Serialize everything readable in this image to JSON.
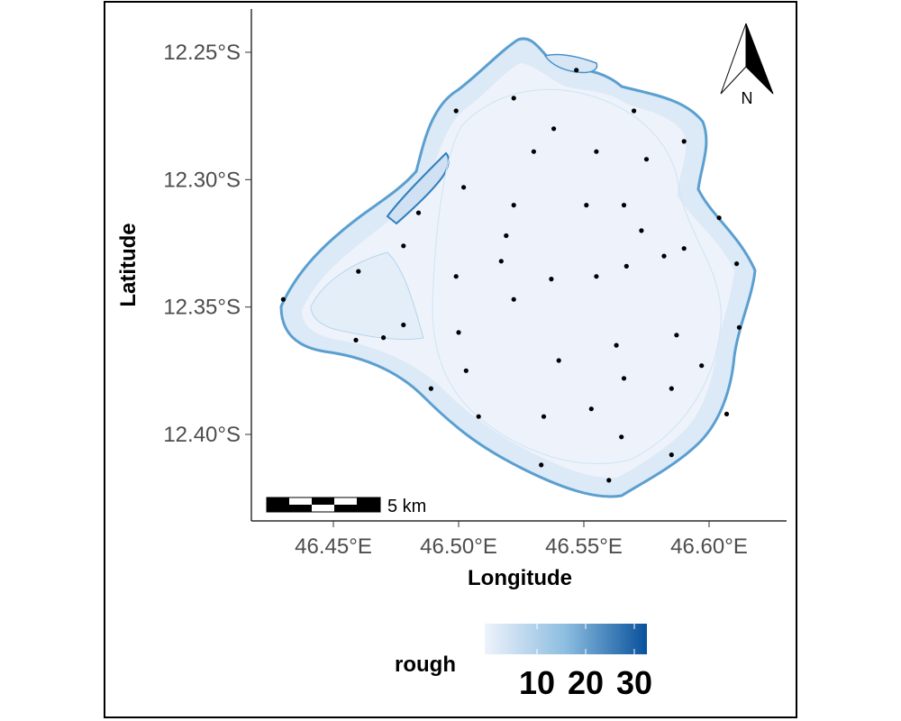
{
  "map": {
    "x_axis_label": "Longitude",
    "y_axis_label": "Latitude",
    "x_ticks": [
      "46.45°E",
      "46.50°E",
      "46.55°E",
      "46.60°E"
    ],
    "y_ticks": [
      "12.25°S",
      "12.30°S",
      "12.35°S",
      "12.40°S"
    ],
    "north_arrow_label": "N",
    "scale_bar_label": "5 km",
    "legend_title": "rough",
    "legend_ticks": [
      "10",
      "20",
      "30"
    ],
    "colors": {
      "low": "#eef3fb",
      "mid": "#8cbde0",
      "high": "#08519c",
      "reef_edge": "#4a90c8",
      "points": "#000000"
    }
  },
  "chart_data": {
    "type": "scatter",
    "x_axis": {
      "label": "Longitude",
      "range": [
        46.42,
        46.635
      ],
      "ticks": [
        46.45,
        46.5,
        46.55,
        46.6
      ]
    },
    "y_axis": {
      "label": "Latitude",
      "range": [
        -12.435,
        -12.235
      ],
      "ticks": [
        -12.25,
        -12.3,
        -12.35,
        -12.4
      ]
    },
    "fill_variable": "rough",
    "fill_scale": {
      "ticks": [
        10,
        20,
        30
      ]
    },
    "points": [
      [
        46.547,
        -12.257
      ],
      [
        46.522,
        -12.268
      ],
      [
        46.499,
        -12.273
      ],
      [
        46.57,
        -12.273
      ],
      [
        46.538,
        -12.28
      ],
      [
        46.53,
        -12.289
      ],
      [
        46.555,
        -12.289
      ],
      [
        46.575,
        -12.292
      ],
      [
        46.59,
        -12.285
      ],
      [
        46.502,
        -12.303
      ],
      [
        46.522,
        -12.31
      ],
      [
        46.551,
        -12.31
      ],
      [
        46.566,
        -12.31
      ],
      [
        46.484,
        -12.313
      ],
      [
        46.604,
        -12.315
      ],
      [
        46.519,
        -12.322
      ],
      [
        46.573,
        -12.32
      ],
      [
        46.478,
        -12.326
      ],
      [
        46.59,
        -12.327
      ],
      [
        46.582,
        -12.33
      ],
      [
        46.517,
        -12.332
      ],
      [
        46.567,
        -12.334
      ],
      [
        46.611,
        -12.333
      ],
      [
        46.46,
        -12.336
      ],
      [
        46.499,
        -12.338
      ],
      [
        46.555,
        -12.338
      ],
      [
        46.537,
        -12.339
      ],
      [
        46.522,
        -12.347
      ],
      [
        46.43,
        -12.347
      ],
      [
        46.478,
        -12.357
      ],
      [
        46.612,
        -12.358
      ],
      [
        46.5,
        -12.36
      ],
      [
        46.587,
        -12.361
      ],
      [
        46.47,
        -12.362
      ],
      [
        46.459,
        -12.363
      ],
      [
        46.563,
        -12.365
      ],
      [
        46.54,
        -12.371
      ],
      [
        46.597,
        -12.373
      ],
      [
        46.503,
        -12.375
      ],
      [
        46.566,
        -12.378
      ],
      [
        46.489,
        -12.382
      ],
      [
        46.585,
        -12.382
      ],
      [
        46.553,
        -12.39
      ],
      [
        46.607,
        -12.392
      ],
      [
        46.534,
        -12.393
      ],
      [
        46.508,
        -12.393
      ],
      [
        46.565,
        -12.401
      ],
      [
        46.585,
        -12.408
      ],
      [
        46.533,
        -12.412
      ],
      [
        46.56,
        -12.418
      ]
    ]
  }
}
